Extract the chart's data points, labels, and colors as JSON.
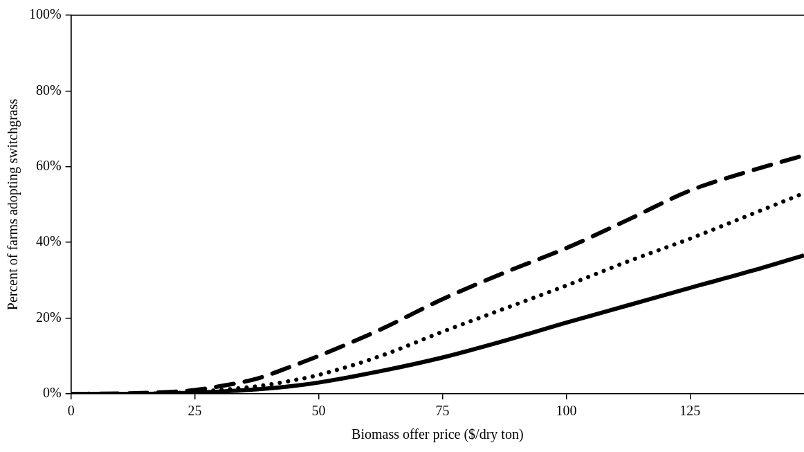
{
  "chart_data": {
    "type": "line",
    "xlabel": "Biomass offer price ($/dry ton)",
    "ylabel": "Percent of farms adopting switchgrass",
    "x": [
      0,
      10,
      20,
      25,
      30,
      37.5,
      45,
      50,
      62.5,
      75,
      87.5,
      100,
      112.5,
      125,
      137.5,
      148
    ],
    "series": [
      {
        "color": "#000000",
        "line_style": "solid",
        "values": [
          0,
          0,
          0.1,
          0.3,
          0.6,
          1.2,
          2.1,
          3,
          6,
          9.6,
          14,
          18.8,
          23.4,
          28,
          32.5,
          36.6
        ]
      },
      {
        "color": "#000000",
        "line_style": "dotted",
        "values": [
          0,
          0,
          0.2,
          0.5,
          1,
          2,
          3.6,
          5,
          10,
          16.4,
          22.5,
          28.6,
          35,
          41,
          47.5,
          53
        ]
      },
      {
        "color": "#000000",
        "line_style": "dashed",
        "values": [
          0,
          0.1,
          0.5,
          1,
          2,
          4,
          7.5,
          10,
          17,
          25,
          32,
          38.5,
          46,
          53.7,
          59,
          63
        ]
      }
    ],
    "xlim": [
      0,
      148
    ],
    "xticks": [
      0,
      25,
      50,
      75,
      100,
      125
    ],
    "ylim": [
      0,
      100
    ],
    "yticks": [
      {
        "value": 0,
        "label": "0%"
      },
      {
        "value": 20,
        "label": "20%"
      },
      {
        "value": 40,
        "label": "40%"
      },
      {
        "value": 60,
        "label": "60%"
      },
      {
        "value": 80,
        "label": "80%"
      },
      {
        "value": 100,
        "label": "100%"
      }
    ],
    "grid": false,
    "legend": false,
    "marker": "none"
  }
}
